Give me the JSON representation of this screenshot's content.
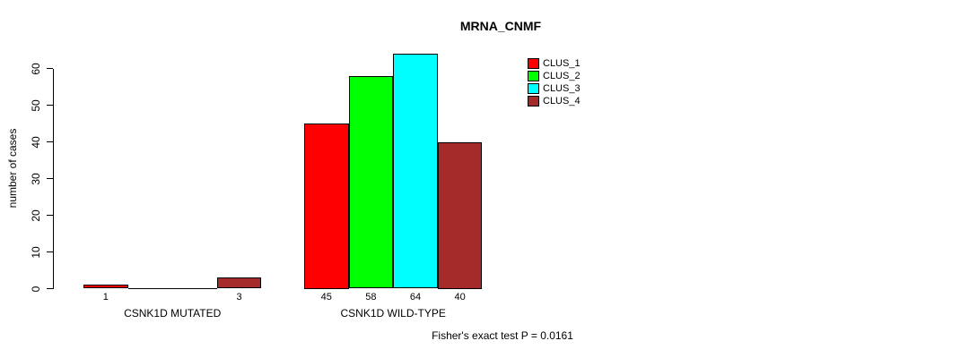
{
  "chart_data": {
    "type": "bar",
    "title": "MRNA_CNMF",
    "xlabel": "",
    "ylabel": "number of cases",
    "ylim": [
      0,
      60
    ],
    "yticks": [
      0,
      10,
      20,
      30,
      40,
      50,
      60
    ],
    "grid": false,
    "legend_position": "top-right",
    "categories": [
      "CSNK1D MUTATED",
      "CSNK1D WILD-TYPE"
    ],
    "series": [
      {
        "name": "CLUS_1",
        "color": "#ff0000",
        "values": [
          1,
          45
        ],
        "value_labels": [
          "1",
          "45"
        ]
      },
      {
        "name": "CLUS_2",
        "color": "#00ff00",
        "values": [
          0,
          58
        ],
        "value_labels": [
          "",
          "58"
        ]
      },
      {
        "name": "CLUS_3",
        "color": "#00ffff",
        "values": [
          0,
          64
        ],
        "value_labels": [
          "",
          "64"
        ]
      },
      {
        "name": "CLUS_4",
        "color": "#a52a2a",
        "values": [
          3,
          40
        ],
        "value_labels": [
          "3",
          "40"
        ]
      }
    ],
    "annotation": "Fisher's exact test P = 0.0161"
  }
}
